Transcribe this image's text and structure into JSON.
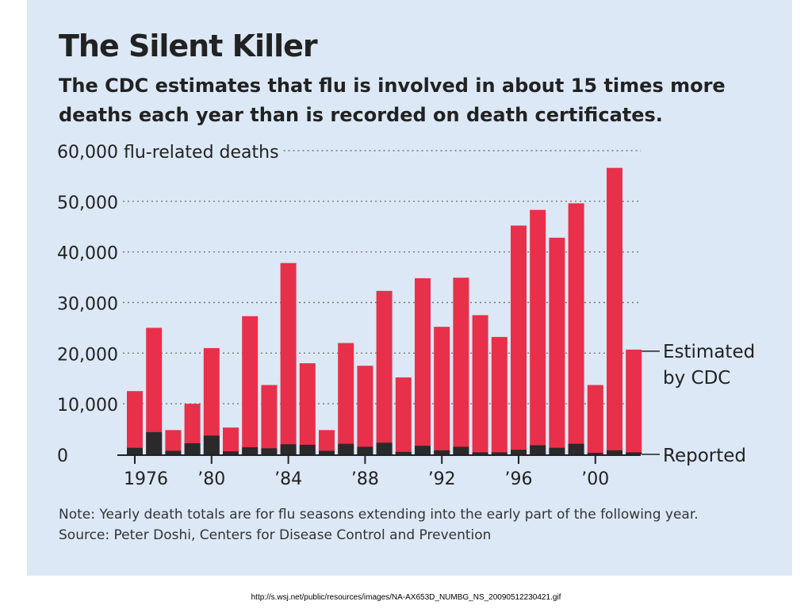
{
  "title": "The Silent Killer",
  "subtitle": "The CDC estimates that flu is involved in about 15 times more deaths each year than is recorded on death certificates.",
  "note": {
    "line1": "Note: Yearly death totals are for flu seasons extending into the early part of the following year.",
    "line2": "Source: Peter Doshi, Centers for Disease Control and Prevention"
  },
  "footer_url": "http://s.wsj.net/public/resources/images/NA-AX653D_NUMBG_NS_20090512230421.gif",
  "colors": {
    "background": "#dce8f5",
    "estimated": "#e8304a",
    "reported": "#2a2a2a",
    "grid": "#777777"
  },
  "chart_data": {
    "type": "bar",
    "stacked": false,
    "overlay": true,
    "title": "The Silent Killer",
    "subtitle": "The CDC estimates that flu is involved in about 15 times more deaths each year than is recorded on death certificates.",
    "ylabel": "60,000 flu-related deaths",
    "ylim": [
      0,
      60000
    ],
    "yticks": [
      0,
      10000,
      20000,
      30000,
      40000,
      50000,
      60000
    ],
    "ytick_labels": [
      "0",
      "10,000",
      "20,000",
      "30,000",
      "40,000",
      "50,000",
      "60,000 flu-related deaths"
    ],
    "x": [
      1976,
      1977,
      1978,
      1979,
      1980,
      1981,
      1982,
      1983,
      1984,
      1985,
      1986,
      1987,
      1988,
      1989,
      1990,
      1991,
      1992,
      1993,
      1994,
      1995,
      1996,
      1997,
      1998,
      1999,
      2000,
      2001,
      2002
    ],
    "xtick_labels": [
      {
        "x": 1976,
        "label": "1976"
      },
      {
        "x": 1980,
        "label": "’80"
      },
      {
        "x": 1984,
        "label": "’84"
      },
      {
        "x": 1988,
        "label": "’88"
      },
      {
        "x": 1992,
        "label": "’92"
      },
      {
        "x": 1996,
        "label": "’96"
      },
      {
        "x": 2000,
        "label": "’00"
      }
    ],
    "grid": true,
    "series": [
      {
        "name": "Estimated by CDC",
        "color": "#e8304a",
        "values": [
          12500,
          25000,
          4800,
          10000,
          21000,
          5300,
          27300,
          13700,
          37800,
          18000,
          4800,
          22000,
          17500,
          32300,
          15200,
          34800,
          25200,
          34900,
          27500,
          23200,
          45200,
          48300,
          42800,
          49600,
          13700,
          56600,
          20700
        ]
      },
      {
        "name": "Reported",
        "color": "#2a2a2a",
        "values": [
          1300,
          4400,
          700,
          2200,
          3700,
          600,
          1400,
          1200,
          2000,
          1900,
          700,
          2100,
          1500,
          2300,
          500,
          1700,
          800,
          1500,
          400,
          400,
          900,
          1800,
          1300,
          2100,
          300,
          800,
          400
        ]
      }
    ],
    "legend": [
      {
        "label": "Estimated by CDC",
        "placement": "right, beside last bar"
      },
      {
        "label": "Reported",
        "placement": "right, at baseline"
      }
    ]
  }
}
